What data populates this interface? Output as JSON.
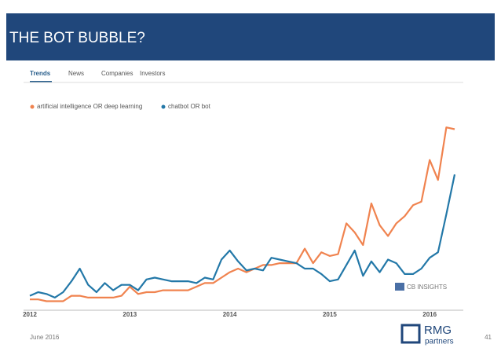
{
  "slide": {
    "title": "THE BOT BUBBLE?",
    "tabs": [
      "Trends",
      "News",
      "Companies",
      "Investors"
    ],
    "watermark": "CB INSIGHTS",
    "date": "June 2016",
    "logo": [
      "RMG",
      "partners"
    ],
    "page": "41"
  },
  "chart_data": {
    "type": "line",
    "categories": [
      "2012",
      null,
      null,
      null,
      null,
      null,
      null,
      null,
      null,
      null,
      null,
      null,
      "2013",
      null,
      null,
      null,
      null,
      null,
      null,
      null,
      null,
      null,
      null,
      null,
      "2014",
      null,
      null,
      null,
      null,
      null,
      null,
      null,
      null,
      null,
      null,
      null,
      "2015",
      null,
      null,
      null,
      null,
      null,
      null,
      null,
      null,
      null,
      null,
      null,
      "2016",
      null,
      null,
      null
    ],
    "series": [
      {
        "name": "artificial intelligence OR deep learning",
        "color": "#f0834f",
        "values": [
          6,
          6,
          5,
          5,
          5,
          8,
          8,
          7,
          7,
          7,
          7,
          8,
          13,
          9,
          10,
          10,
          11,
          11,
          11,
          11,
          13,
          15,
          15,
          18,
          21,
          23,
          21,
          23,
          25,
          25,
          26,
          26,
          26,
          34,
          26,
          32,
          30,
          31,
          48,
          43,
          36,
          59,
          47,
          41,
          48,
          52,
          58,
          60,
          83,
          72,
          101,
          100
        ]
      },
      {
        "name": "chatbot OR bot",
        "color": "#2378a8",
        "values": [
          8,
          10,
          9,
          7,
          10,
          16,
          23,
          14,
          10,
          15,
          11,
          14,
          14,
          11,
          17,
          18,
          17,
          16,
          16,
          16,
          15,
          18,
          17,
          28,
          33,
          27,
          22,
          23,
          22,
          29,
          28,
          27,
          26,
          23,
          23,
          20,
          16,
          17,
          25,
          33,
          19,
          27,
          21,
          28,
          26,
          20,
          20,
          23,
          29,
          32,
          53,
          75
        ]
      }
    ],
    "ylim": [
      0,
      105
    ]
  }
}
